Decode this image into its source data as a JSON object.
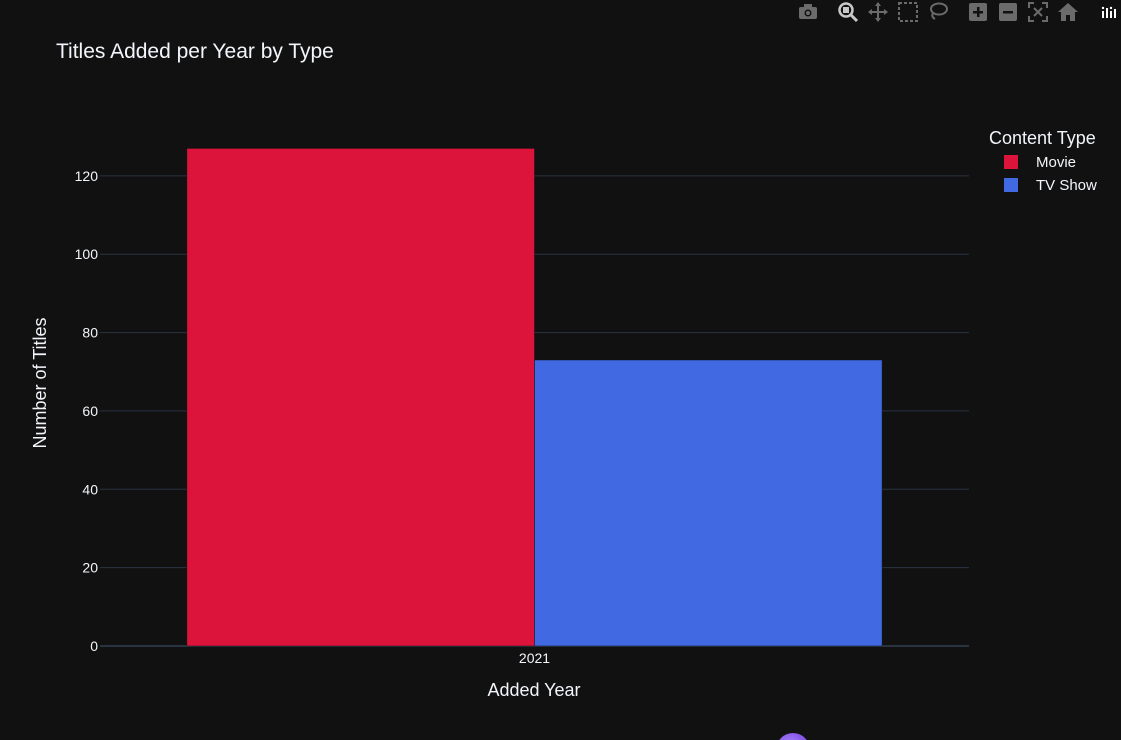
{
  "modebar": {
    "buttons": [
      {
        "name": "camera-icon"
      },
      {
        "name": "zoom-icon"
      },
      {
        "name": "pan-icon"
      },
      {
        "name": "box-select-icon"
      },
      {
        "name": "lasso-select-icon"
      },
      {
        "name": "zoom-in-icon"
      },
      {
        "name": "zoom-out-icon"
      },
      {
        "name": "autoscale-icon"
      },
      {
        "name": "reset-axes-icon"
      },
      {
        "name": "plotly-logo-icon"
      }
    ]
  },
  "chart_data": {
    "type": "bar",
    "title": "Titles Added per Year by Type",
    "xlabel": "Added Year",
    "ylabel": "Number of Titles",
    "categories": [
      "2021"
    ],
    "series": [
      {
        "name": "Movie",
        "values": [
          127
        ],
        "color": "#dc143c"
      },
      {
        "name": "TV Show",
        "values": [
          73
        ],
        "color": "#4169e1"
      }
    ],
    "ylim": [
      0,
      134
    ],
    "yticks": [
      0,
      20,
      40,
      60,
      80,
      100,
      120
    ],
    "grid": true,
    "legend_title": "Content Type",
    "legend_position": "top-right",
    "barmode": "group"
  },
  "colors": {
    "background": "#111111",
    "grid": "#283442",
    "text": "#f2f5fa",
    "modebar_icon": "#6b6b6b"
  }
}
